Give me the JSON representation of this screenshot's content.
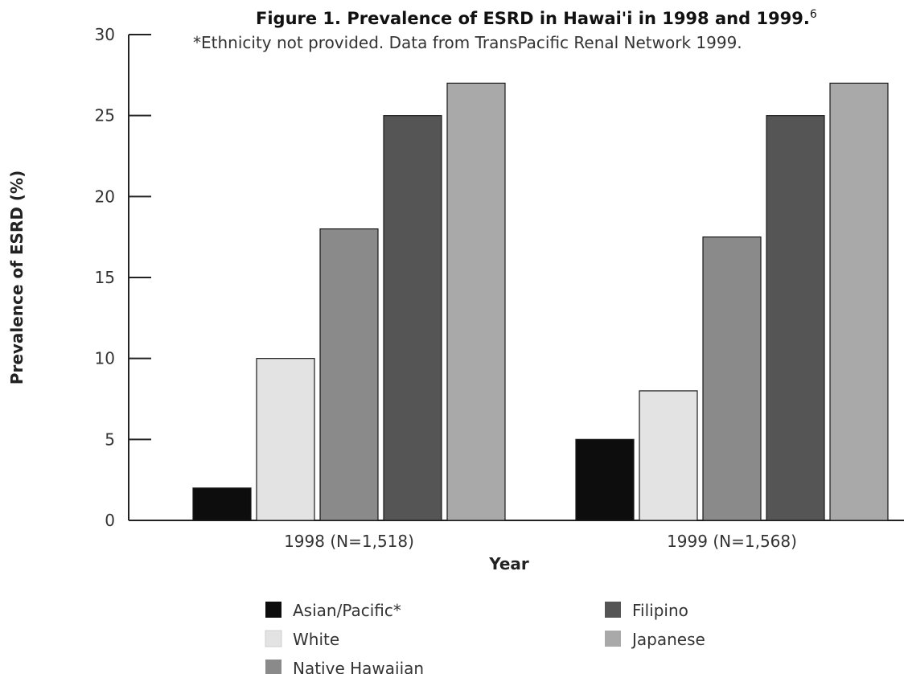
{
  "chart_data": {
    "type": "bar",
    "title": "Figure 1. Prevalence of ESRD in Hawai'i in 1998 and 1999.",
    "title_superscript": "6",
    "subtitle": "*Ethnicity not provided. Data from TransPacific Renal Network 1999.",
    "xlabel": "Year",
    "ylabel": "Prevalence of ESRD (%)",
    "ylim": [
      0,
      30
    ],
    "yticks": [
      0,
      5,
      10,
      15,
      20,
      25,
      30
    ],
    "grid": false,
    "legend_position": "bottom",
    "categories": [
      "1998 (N=1,518)",
      "1999 (N=1,568)"
    ],
    "series": [
      {
        "name": "Asian/Pacific*",
        "values": [
          2,
          5
        ],
        "color": "#0d0d0d"
      },
      {
        "name": "White",
        "values": [
          10,
          8
        ],
        "color": "#e3e3e3"
      },
      {
        "name": "Native Hawaiian",
        "values": [
          18,
          17.5
        ],
        "color": "#8a8a8a"
      },
      {
        "name": "Filipino",
        "values": [
          25,
          25
        ],
        "color": "#555555"
      },
      {
        "name": "Japanese",
        "values": [
          27,
          27
        ],
        "color": "#a9a9a9"
      }
    ]
  }
}
